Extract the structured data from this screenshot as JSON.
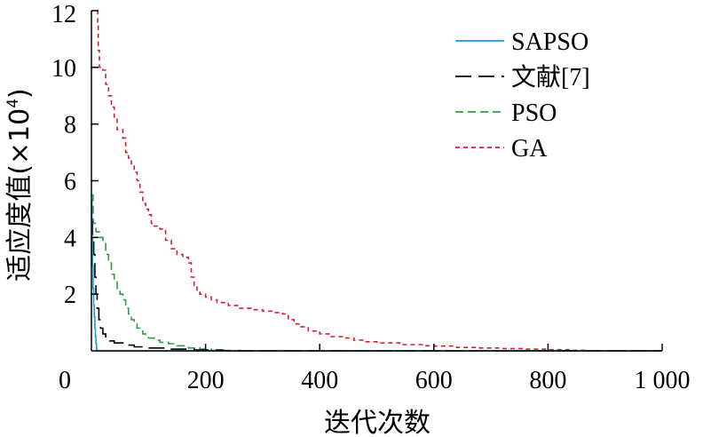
{
  "chart_data": {
    "type": "line",
    "xlabel": "迭代次数",
    "ylabel": "适应度值(×10",
    "ylabel_exponent": "4",
    "ylabel_close": ")",
    "xlim": [
      0,
      1000
    ],
    "ylim": [
      0,
      12
    ],
    "x_ticks": [
      {
        "value": 0,
        "label": "0"
      },
      {
        "value": 200,
        "label": "200"
      },
      {
        "value": 400,
        "label": "400"
      },
      {
        "value": 600,
        "label": "600"
      },
      {
        "value": 800,
        "label": "800"
      },
      {
        "value": 1000,
        "label": "1 000"
      }
    ],
    "y_ticks": [
      {
        "value": 2,
        "label": "2"
      },
      {
        "value": 4,
        "label": "4"
      },
      {
        "value": 6,
        "label": "6"
      },
      {
        "value": 8,
        "label": "8"
      },
      {
        "value": 10,
        "label": "10"
      },
      {
        "value": 12,
        "label": "12"
      }
    ],
    "grid": false,
    "legend_position": "top-right",
    "series": [
      {
        "name": "SAPSO",
        "color": "#1f9bd7",
        "dash": "solid",
        "points": [
          [
            0,
            5.3
          ],
          [
            1,
            4.0
          ],
          [
            2,
            3.0
          ],
          [
            3,
            2.2
          ],
          [
            4,
            1.6
          ],
          [
            5,
            1.2
          ],
          [
            6,
            0.8
          ],
          [
            7,
            0.5
          ],
          [
            8,
            0.25
          ],
          [
            9,
            0.05
          ],
          [
            10,
            0
          ],
          [
            1000,
            0
          ]
        ]
      },
      {
        "name": "文献[7]",
        "color": "#000000",
        "dash": "long",
        "points": [
          [
            0,
            4.6
          ],
          [
            2,
            4.0
          ],
          [
            4,
            3.4
          ],
          [
            6,
            2.6
          ],
          [
            8,
            2.0
          ],
          [
            10,
            1.5
          ],
          [
            13,
            1.1
          ],
          [
            16,
            0.8
          ],
          [
            20,
            0.6
          ],
          [
            25,
            0.45
          ],
          [
            32,
            0.35
          ],
          [
            40,
            0.28
          ],
          [
            55,
            0.2
          ],
          [
            75,
            0.14
          ],
          [
            100,
            0.1
          ],
          [
            140,
            0.06
          ],
          [
            180,
            0.03
          ],
          [
            230,
            0.01
          ],
          [
            260,
            0
          ],
          [
            1000,
            0
          ]
        ]
      },
      {
        "name": "PSO",
        "color": "#2e9e46",
        "dash": "medium",
        "points": [
          [
            0,
            5.5
          ],
          [
            3,
            4.5
          ],
          [
            8,
            4.2
          ],
          [
            14,
            4.0
          ],
          [
            20,
            3.9
          ],
          [
            25,
            3.4
          ],
          [
            30,
            3.1
          ],
          [
            35,
            2.7
          ],
          [
            40,
            2.5
          ],
          [
            45,
            2.2
          ],
          [
            50,
            2.0
          ],
          [
            55,
            1.8
          ],
          [
            60,
            1.5
          ],
          [
            65,
            1.3
          ],
          [
            70,
            1.1
          ],
          [
            75,
            0.95
          ],
          [
            80,
            0.8
          ],
          [
            85,
            0.7
          ],
          [
            90,
            0.6
          ],
          [
            95,
            0.5
          ],
          [
            100,
            0.45
          ],
          [
            110,
            0.38
          ],
          [
            120,
            0.3
          ],
          [
            135,
            0.25
          ],
          [
            150,
            0.18
          ],
          [
            170,
            0.1
          ],
          [
            190,
            0.06
          ],
          [
            210,
            0.02
          ],
          [
            230,
            0
          ],
          [
            1000,
            0
          ]
        ]
      },
      {
        "name": "GA",
        "color": "#d4202c",
        "dash": "short",
        "points": [
          [
            10,
            12.0
          ],
          [
            11,
            11.6
          ],
          [
            12,
            10.6
          ],
          [
            14,
            10.0
          ],
          [
            20,
            9.9
          ],
          [
            25,
            9.4
          ],
          [
            30,
            9.0
          ],
          [
            35,
            8.6
          ],
          [
            40,
            8.2
          ],
          [
            45,
            7.8
          ],
          [
            55,
            7.5
          ],
          [
            60,
            7.0
          ],
          [
            65,
            6.8
          ],
          [
            70,
            6.6
          ],
          [
            75,
            6.3
          ],
          [
            80,
            6.0
          ],
          [
            85,
            5.6
          ],
          [
            90,
            5.2
          ],
          [
            95,
            5.0
          ],
          [
            100,
            4.8
          ],
          [
            105,
            4.5
          ],
          [
            110,
            4.4
          ],
          [
            120,
            4.3
          ],
          [
            130,
            3.9
          ],
          [
            140,
            3.6
          ],
          [
            150,
            3.4
          ],
          [
            160,
            3.3
          ],
          [
            170,
            3.1
          ],
          [
            175,
            2.6
          ],
          [
            180,
            2.3
          ],
          [
            185,
            2.1
          ],
          [
            190,
            2.0
          ],
          [
            200,
            1.9
          ],
          [
            210,
            1.8
          ],
          [
            220,
            1.7
          ],
          [
            240,
            1.6
          ],
          [
            260,
            1.5
          ],
          [
            280,
            1.45
          ],
          [
            300,
            1.4
          ],
          [
            320,
            1.35
          ],
          [
            335,
            1.3
          ],
          [
            345,
            1.1
          ],
          [
            355,
            0.95
          ],
          [
            365,
            0.85
          ],
          [
            380,
            0.7
          ],
          [
            400,
            0.6
          ],
          [
            420,
            0.5
          ],
          [
            440,
            0.45
          ],
          [
            460,
            0.38
          ],
          [
            480,
            0.32
          ],
          [
            500,
            0.28
          ],
          [
            540,
            0.22
          ],
          [
            580,
            0.18
          ],
          [
            600,
            0.17
          ],
          [
            640,
            0.12
          ],
          [
            680,
            0.1
          ],
          [
            720,
            0.08
          ],
          [
            760,
            0.06
          ],
          [
            800,
            0.04
          ],
          [
            840,
            0.02
          ],
          [
            865,
            0.01
          ],
          [
            870,
            0
          ]
        ]
      }
    ]
  }
}
